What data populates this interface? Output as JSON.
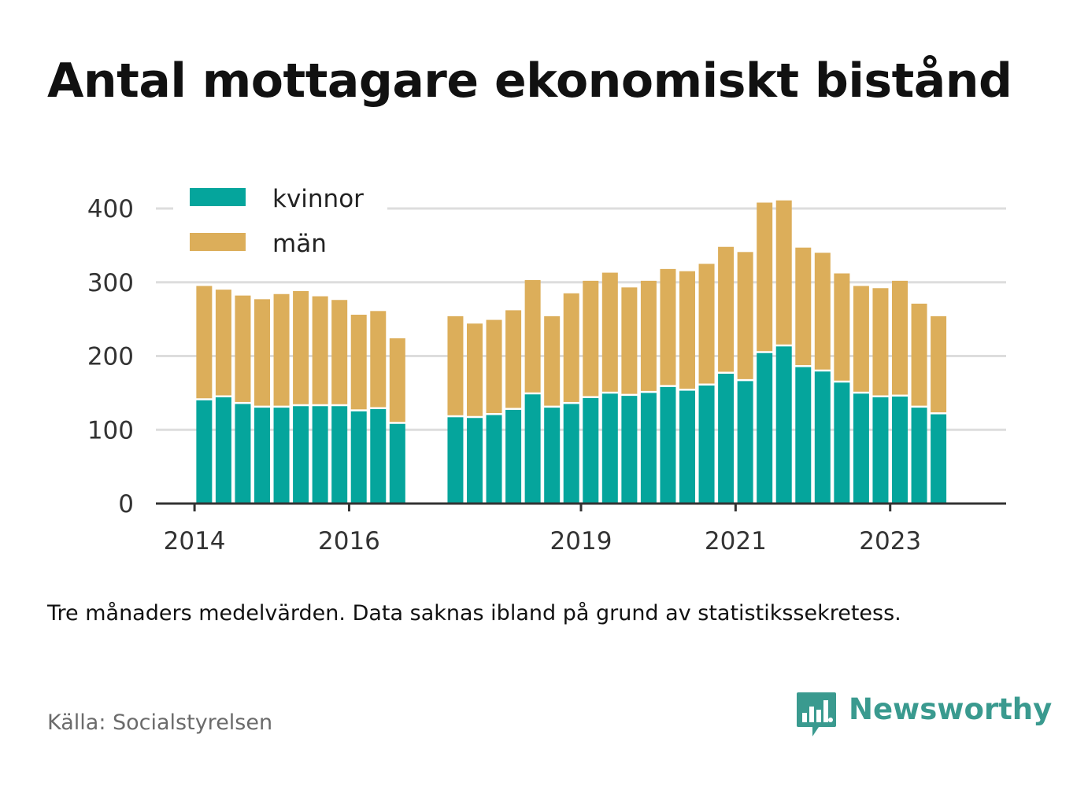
{
  "title": "Antal mottagare ekonomiskt bistånd",
  "subtitle": "Tre månaders medelvärden. Data saknas ibland på grund av statistikssekretess.",
  "source": "Källa: Socialstyrelsen",
  "brand": {
    "name": "Newsworthy",
    "icon": "newsworthy-logo-icon"
  },
  "colors": {
    "kvinnor": "#05a59c",
    "man": "#dcae5a",
    "grid": "#dddddd",
    "axis": "#333333",
    "text": "#333333"
  },
  "chart_data": {
    "type": "bar",
    "stacked": true,
    "title": "Antal mottagare ekonomiskt bistånd",
    "xlabel": "",
    "ylabel": "",
    "ylim": [
      0,
      400
    ],
    "yticks": [
      "0",
      "100",
      "200",
      "300",
      "400"
    ],
    "xtick_labels": [
      "2014",
      "2016",
      "2019",
      "2021",
      "2023"
    ],
    "xlim": [
      "2014-01",
      "2024-12"
    ],
    "grid": true,
    "legend": {
      "position": "top-left",
      "entries": [
        "kvinnor",
        "män"
      ]
    },
    "categories": [
      "2014-Q3",
      "2014-Q4",
      "2015-Q1",
      "2015-Q2",
      "2015-Q3",
      "2015-Q4",
      "2016-Q1",
      "2016-Q2",
      "2016-Q3",
      "2016-Q4",
      "2017-Q1",
      "2017-Q4",
      "2018-Q1",
      "2018-Q2",
      "2018-Q3",
      "2018-Q4",
      "2019-Q1",
      "2019-Q2",
      "2019-Q3",
      "2019-Q4",
      "2020-Q1",
      "2020-Q2",
      "2020-Q3",
      "2020-Q4",
      "2021-Q1",
      "2021-Q2",
      "2021-Q3",
      "2021-Q4",
      "2022-Q1",
      "2022-Q2",
      "2022-Q3",
      "2022-Q4",
      "2023-Q1",
      "2023-Q2",
      "2023-Q3",
      "2023-Q4",
      "2024-Q1"
    ],
    "series": [
      {
        "name": "kvinnor",
        "values": [
          140,
          144,
          135,
          130,
          130,
          132,
          132,
          132,
          125,
          128,
          108,
          117,
          116,
          120,
          127,
          148,
          130,
          135,
          143,
          149,
          146,
          150,
          158,
          153,
          160,
          176,
          166,
          204,
          213,
          185,
          179,
          164,
          149,
          144,
          145,
          130,
          121
        ]
      },
      {
        "name": "män",
        "values": [
          155,
          146,
          147,
          147,
          154,
          156,
          149,
          144,
          131,
          133,
          116,
          137,
          128,
          129,
          135,
          155,
          124,
          150,
          159,
          164,
          147,
          152,
          160,
          162,
          165,
          172,
          175,
          204,
          198,
          162,
          161,
          148,
          146,
          148,
          157,
          141,
          133
        ]
      }
    ]
  }
}
